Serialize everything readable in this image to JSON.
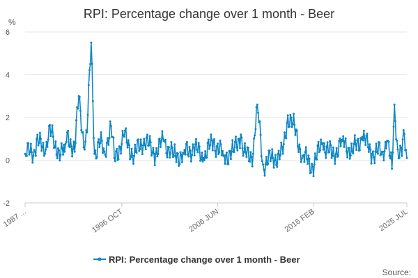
{
  "chart_data": {
    "type": "line",
    "title": "RPI: Percentage change over 1 month - Beer",
    "ylabel": "%",
    "xlabel": "",
    "ylim": [
      -2,
      6
    ],
    "yticks": [
      -2,
      0,
      2,
      4,
      6
    ],
    "x_tick_labels": [
      "1987 ...",
      "1996 OCT",
      "2006 JUN",
      "2016 FEB",
      "2025 JUL"
    ],
    "x_tick_dates": [
      "1987-01",
      "1996-10",
      "2006-06",
      "2016-02",
      "2025-07"
    ],
    "x_range": [
      "1987-01",
      "2025-07"
    ],
    "grid": "horizontal",
    "legend_position": "bottom",
    "colors": {
      "series": "#0f87c4",
      "grid": "#e6e6e6",
      "axis": "#cccccc"
    },
    "series": [
      {
        "name": "RPI: Percentage change over 1 month - Beer",
        "sampling": "annual anchor points (January values) plus notable spikes; intermediate monthly values interpolated",
        "anchors": [
          {
            "date": "1987-01",
            "value": 0.3
          },
          {
            "date": "1988-01",
            "value": 0.4
          },
          {
            "date": "1988-03",
            "value": 1.0
          },
          {
            "date": "1989-01",
            "value": 0.3
          },
          {
            "date": "1989-06",
            "value": 1.6
          },
          {
            "date": "1990-01",
            "value": 0.6
          },
          {
            "date": "1991-01",
            "value": 0.4
          },
          {
            "date": "1991-04",
            "value": 1.3
          },
          {
            "date": "1992-01",
            "value": 0.4
          },
          {
            "date": "1992-06",
            "value": 3.0
          },
          {
            "date": "1993-01",
            "value": 0.5
          },
          {
            "date": "1993-04",
            "value": 1.3
          },
          {
            "date": "1993-09",
            "value": 5.5
          },
          {
            "date": "1994-01",
            "value": 0.3
          },
          {
            "date": "1994-08",
            "value": 0.8
          },
          {
            "date": "1995-01",
            "value": 0.4
          },
          {
            "date": "1995-09",
            "value": 1.6
          },
          {
            "date": "1996-01",
            "value": 0.1
          },
          {
            "date": "1997-01",
            "value": 1.1
          },
          {
            "date": "1998-01",
            "value": 0.2
          },
          {
            "date": "1999-01",
            "value": 1.0
          },
          {
            "date": "2000-01",
            "value": 0.3
          },
          {
            "date": "2001-01",
            "value": 0.9
          },
          {
            "date": "2002-01",
            "value": 0.2
          },
          {
            "date": "2003-01",
            "value": 0.3
          },
          {
            "date": "2004-01",
            "value": 0.6
          },
          {
            "date": "2005-01",
            "value": 0.1
          },
          {
            "date": "2006-01",
            "value": 0.9
          },
          {
            "date": "2007-01",
            "value": 0.2
          },
          {
            "date": "2008-01",
            "value": 0.4
          },
          {
            "date": "2008-10",
            "value": 1.2
          },
          {
            "date": "2009-01",
            "value": 0.2
          },
          {
            "date": "2010-01",
            "value": 0.3
          },
          {
            "date": "2010-06",
            "value": 2.6
          },
          {
            "date": "2011-01",
            "value": -0.2
          },
          {
            "date": "2012-01",
            "value": 0.1
          },
          {
            "date": "2013-01",
            "value": 0.3
          },
          {
            "date": "2013-07",
            "value": 2.1
          },
          {
            "date": "2014-01",
            "value": 1.7
          },
          {
            "date": "2015-01",
            "value": 0.2
          },
          {
            "date": "2016-01",
            "value": -0.3
          },
          {
            "date": "2017-01",
            "value": 0.8
          },
          {
            "date": "2018-01",
            "value": 0.2
          },
          {
            "date": "2019-01",
            "value": 0.9
          },
          {
            "date": "2020-01",
            "value": 0.4
          },
          {
            "date": "2021-01",
            "value": 1.1
          },
          {
            "date": "2022-01",
            "value": 0.3
          },
          {
            "date": "2023-01",
            "value": 0.4
          },
          {
            "date": "2023-07",
            "value": 0.9
          },
          {
            "date": "2024-01",
            "value": -0.4
          },
          {
            "date": "2024-04",
            "value": 2.6
          },
          {
            "date": "2024-08",
            "value": 0.5
          },
          {
            "date": "2025-01",
            "value": 0.2
          },
          {
            "date": "2025-03",
            "value": 1.4
          },
          {
            "date": "2025-07",
            "value": 0.1
          }
        ]
      }
    ]
  },
  "source_label": "Source:"
}
